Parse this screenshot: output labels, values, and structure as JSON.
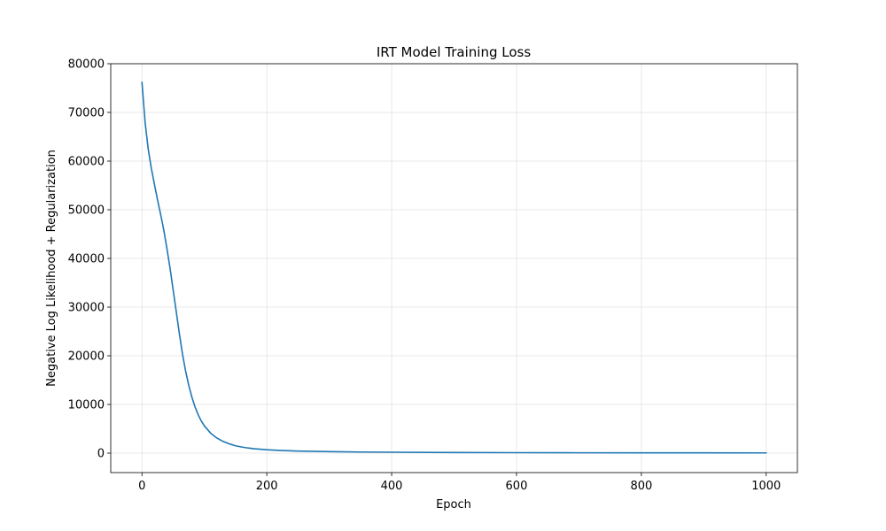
{
  "chart_data": {
    "type": "line",
    "title": "IRT Model Training Loss",
    "xlabel": "Epoch",
    "ylabel": "Negative Log Likelihood + Regularization",
    "xlim": [
      -50,
      1050
    ],
    "ylim": [
      -4000,
      80000
    ],
    "xticks": [
      0,
      200,
      400,
      600,
      800,
      1000
    ],
    "yticks": [
      0,
      10000,
      20000,
      30000,
      40000,
      50000,
      60000,
      70000,
      80000
    ],
    "grid": true,
    "series_color": "#1f77b4",
    "series": [
      {
        "x": [
          0,
          5,
          10,
          15,
          20,
          25,
          30,
          35,
          40,
          45,
          50,
          55,
          60,
          65,
          70,
          75,
          80,
          85,
          90,
          95,
          100,
          110,
          120,
          130,
          140,
          150,
          160,
          170,
          180,
          200,
          220,
          250,
          300,
          350,
          400,
          500,
          600,
          700,
          800,
          900,
          1000
        ],
        "y": [
          76200,
          68000,
          62500,
          58500,
          55200,
          52000,
          49000,
          45800,
          42000,
          38000,
          33500,
          29000,
          24500,
          20300,
          16800,
          13900,
          11500,
          9500,
          7900,
          6600,
          5600,
          4100,
          3100,
          2400,
          1900,
          1500,
          1250,
          1050,
          900,
          700,
          560,
          420,
          300,
          230,
          180,
          120,
          90,
          70,
          60,
          50,
          45
        ]
      }
    ]
  }
}
